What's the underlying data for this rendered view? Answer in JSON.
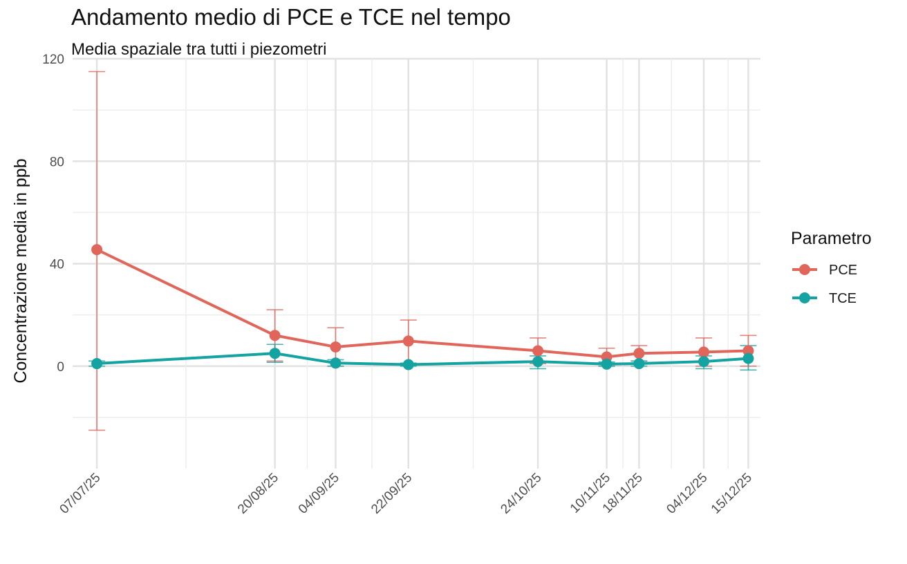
{
  "title": "Andamento medio di PCE e TCE nel tempo",
  "subtitle": "Media spaziale tra tutti i piezometri",
  "chart_data": {
    "type": "line",
    "title": "Andamento medio di PCE e TCE nel tempo",
    "subtitle": "Media spaziale tra tutti i piezometri",
    "xlabel": "",
    "ylabel": "Concentrazione media in ppb",
    "ylim": [
      -40,
      120
    ],
    "yticks": [
      0,
      40,
      80,
      120
    ],
    "ygrid_minor": [
      -20,
      20,
      60,
      100
    ],
    "x_dates": [
      "2025-07-07",
      "2025-08-20",
      "2025-09-04",
      "2025-09-22",
      "2025-10-24",
      "2025-11-10",
      "2025-11-18",
      "2025-12-04",
      "2025-12-15"
    ],
    "x_labels": [
      "07/07/25",
      "20/08/25",
      "04/09/25",
      "22/09/25",
      "24/10/25",
      "10/11/25",
      "18/11/25",
      "04/12/25",
      "15/12/25"
    ],
    "x_minor_grid_dates": [
      "2025-07-29",
      "2025-08-28",
      "2025-09-13",
      "2025-10-08",
      "2025-11-14",
      "2025-11-26",
      "2025-12-10"
    ],
    "xlim_dates": [
      "2025-07-01",
      "2025-12-18"
    ],
    "legend_title": "Parametro",
    "legend_position": "right",
    "series": [
      {
        "name": "PCE",
        "color": "#e0665c",
        "values": [
          45.5,
          12.0,
          7.5,
          9.8,
          6.0,
          3.6,
          5.0,
          5.5,
          6.0
        ],
        "err_low": [
          -25,
          2,
          0,
          1,
          1,
          0,
          2,
          0,
          0
        ],
        "err_high": [
          115,
          22,
          15,
          18,
          11,
          7,
          8,
          11,
          12
        ]
      },
      {
        "name": "TCE",
        "color": "#14a3a0",
        "values": [
          1.0,
          5.0,
          1.2,
          0.6,
          1.8,
          0.8,
          1.0,
          1.8,
          3.0
        ],
        "err_low": [
          0,
          1.5,
          0,
          0,
          -1,
          0,
          0,
          -1,
          -1.5
        ],
        "err_high": [
          2,
          8.5,
          2.5,
          1.2,
          4,
          1.6,
          2,
          4,
          8
        ]
      }
    ]
  }
}
